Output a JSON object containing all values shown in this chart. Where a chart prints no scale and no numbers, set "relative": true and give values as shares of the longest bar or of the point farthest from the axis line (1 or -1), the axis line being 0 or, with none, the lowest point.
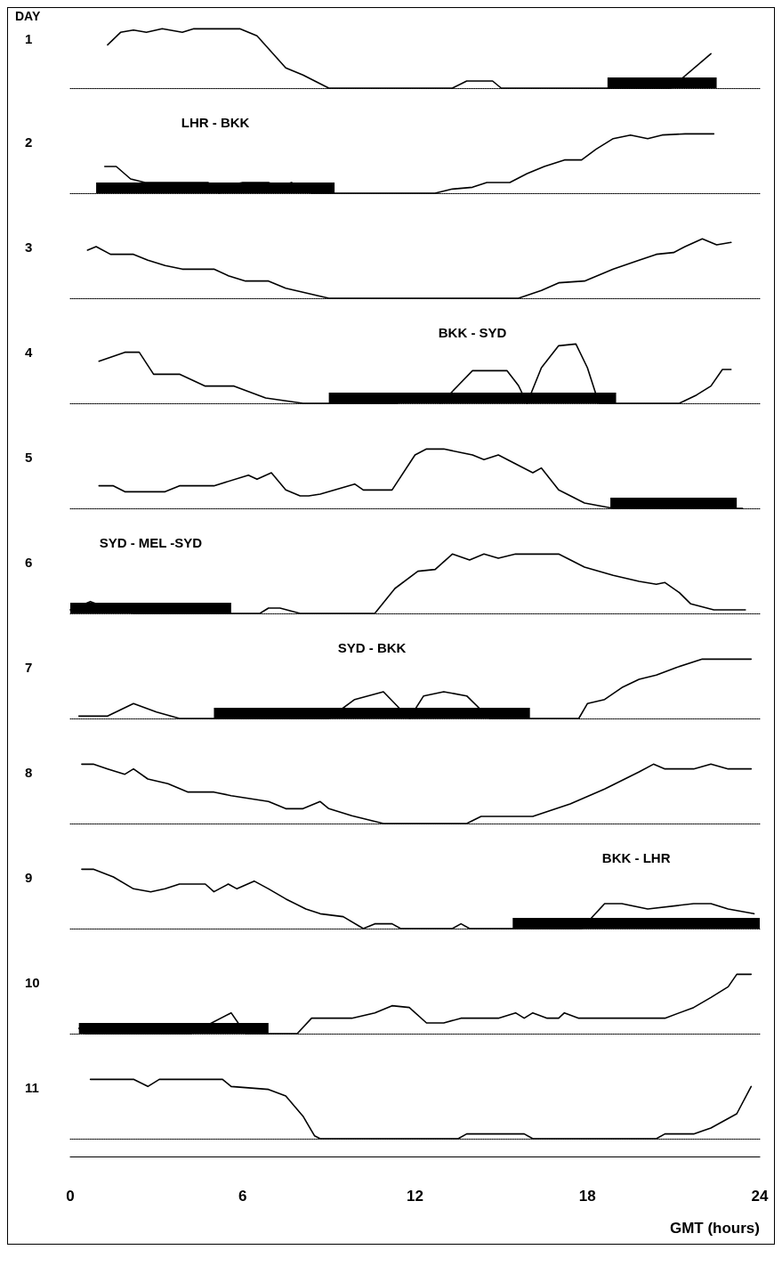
{
  "chart_data": [
    {
      "type": "line",
      "title": "1",
      "annotations": [
        "DAY"
      ],
      "relative": true,
      "xlim": [
        0,
        24
      ],
      "tick_labels": false,
      "x": [
        1.3,
        1.75,
        2.2,
        2.65,
        3.2,
        3.9,
        4.3,
        5.9,
        6.5,
        7.5,
        8.1,
        9.0,
        13.3,
        13.8,
        14.7,
        15.0,
        20.9,
        22.3
      ],
      "series": [
        {
          "color": "#000000",
          "values": [
            0.73,
            0.94,
            0.98,
            0.94,
            1.0,
            0.94,
            1.0,
            1.0,
            0.88,
            0.34,
            0.22,
            0,
            0,
            0.12,
            0.12,
            0,
            0,
            0.58
          ]
        }
      ],
      "bands": [
        {
          "axis": "x",
          "from": 18.7,
          "to": 22.5,
          "color": "#000000"
        }
      ]
    },
    {
      "type": "line",
      "title": "2",
      "relative": true,
      "xlim": [
        0,
        24
      ],
      "tick_labels": false,
      "x": [
        1.2,
        1.6,
        2.1,
        2.6,
        4.8,
        5.2,
        5.7,
        6.0,
        6.9,
        7.3,
        7.7,
        8.1,
        8.4,
        12.7,
        13.3,
        14.0,
        14.5,
        15.3,
        15.9,
        16.5,
        17.2,
        17.8,
        18.3,
        18.9,
        19.5,
        20.1,
        20.6,
        21.4,
        22.4
      ],
      "series": [
        {
          "color": "#000000",
          "values": [
            0.45,
            0.45,
            0.24,
            0.18,
            0.18,
            0,
            0.15,
            0.18,
            0.18,
            0.1,
            0.18,
            0.05,
            0,
            0,
            0.07,
            0.1,
            0.18,
            0.18,
            0.33,
            0.45,
            0.56,
            0.56,
            0.74,
            0.92,
            0.98,
            0.92,
            0.98,
            1.0,
            1.0
          ]
        }
      ],
      "bands": [
        {
          "axis": "x",
          "from": 0.9,
          "to": 9.2,
          "label": "LHR - BKK",
          "color": "#000000"
        }
      ]
    },
    {
      "type": "line",
      "title": "3",
      "relative": true,
      "xlim": [
        0,
        24
      ],
      "tick_labels": false,
      "x": [
        0.6,
        0.9,
        1.4,
        2.2,
        2.7,
        3.3,
        3.9,
        5.0,
        5.5,
        6.1,
        6.9,
        7.5,
        8.1,
        9.0,
        15.6,
        16.4,
        17.0,
        17.9,
        18.9,
        19.8,
        20.4,
        21.0,
        21.4,
        22.0,
        22.5,
        23.0
      ],
      "series": [
        {
          "color": "#000000",
          "values": [
            0.81,
            0.87,
            0.74,
            0.74,
            0.64,
            0.55,
            0.49,
            0.49,
            0.38,
            0.29,
            0.29,
            0.17,
            0.1,
            0,
            0,
            0.13,
            0.26,
            0.29,
            0.49,
            0.64,
            0.74,
            0.77,
            0.87,
            1.0,
            0.9,
            0.94
          ]
        }
      ]
    },
    {
      "type": "line",
      "title": "4",
      "relative": true,
      "xlim": [
        0,
        24
      ],
      "tick_labels": false,
      "x": [
        1.0,
        1.9,
        2.4,
        2.9,
        3.8,
        4.7,
        5.7,
        6.8,
        8.1,
        11.4,
        11.8,
        12.5,
        12.9,
        13.5,
        14.0,
        15.2,
        15.6,
        15.9,
        16.4,
        17.0,
        17.6,
        18.0,
        18.4,
        21.2,
        21.8,
        22.3,
        22.7,
        23.0
      ],
      "series": [
        {
          "color": "#000000",
          "values": [
            0.71,
            0.86,
            0.86,
            0.49,
            0.49,
            0.29,
            0.29,
            0.09,
            0,
            0,
            0.14,
            0.14,
            0,
            0.3,
            0.55,
            0.55,
            0.3,
            0,
            0.6,
            0.97,
            1.0,
            0.6,
            0,
            0,
            0.14,
            0.29,
            0.57,
            0.57
          ]
        }
      ],
      "bands": [
        {
          "axis": "x",
          "from": 9.0,
          "to": 19.0,
          "label": "BKK - SYD",
          "color": "#000000"
        }
      ]
    },
    {
      "type": "line",
      "title": "5",
      "relative": true,
      "xlim": [
        0,
        24
      ],
      "tick_labels": false,
      "x": [
        1.0,
        1.5,
        1.9,
        3.3,
        3.8,
        5.0,
        6.2,
        6.5,
        7.0,
        7.5,
        8.0,
        8.3,
        8.7,
        9.9,
        10.2,
        11.2,
        12.0,
        12.4,
        13.0,
        14.0,
        14.4,
        14.9,
        15.5,
        16.1,
        16.4,
        17.0,
        17.9,
        18.9,
        23.4
      ],
      "series": [
        {
          "color": "#000000",
          "values": [
            0.38,
            0.38,
            0.28,
            0.28,
            0.38,
            0.38,
            0.56,
            0.49,
            0.6,
            0.31,
            0.21,
            0.21,
            0.24,
            0.41,
            0.31,
            0.31,
            0.9,
            1.0,
            1.0,
            0.9,
            0.82,
            0.9,
            0.75,
            0.6,
            0.68,
            0.31,
            0.09,
            0,
            0
          ]
        }
      ],
      "bands": [
        {
          "axis": "x",
          "from": 18.8,
          "to": 23.2,
          "color": "#000000"
        }
      ]
    },
    {
      "type": "line",
      "title": "6",
      "relative": true,
      "xlim": [
        0,
        24
      ],
      "tick_labels": false,
      "x": [
        0,
        0.7,
        1.3,
        2.2,
        6.6,
        6.9,
        7.3,
        8.0,
        10.6,
        11.3,
        12.1,
        12.7,
        13.3,
        13.9,
        14.4,
        14.9,
        15.5,
        17.0,
        17.9,
        18.9,
        19.8,
        20.4,
        20.7,
        21.2,
        21.6,
        22.4,
        23.5
      ],
      "series": [
        {
          "color": "#000000",
          "values": [
            0.06,
            0.2,
            0.09,
            0,
            0,
            0.09,
            0.09,
            0,
            0,
            0.42,
            0.71,
            0.74,
            1.0,
            0.9,
            1.0,
            0.93,
            1.0,
            1.0,
            0.78,
            0.64,
            0.54,
            0.49,
            0.52,
            0.35,
            0.16,
            0.06,
            0.06
          ]
        }
      ],
      "bands": [
        {
          "axis": "x",
          "from": 0.0,
          "to": 5.6,
          "label": "SYD - MEL -SYD",
          "color": "#000000"
        }
      ]
    },
    {
      "type": "line",
      "title": "7",
      "relative": true,
      "xlim": [
        0,
        24
      ],
      "tick_labels": false,
      "x": [
        0.3,
        1.3,
        2.2,
        3.0,
        3.8,
        9.0,
        9.9,
        10.9,
        11.8,
        12.3,
        13.0,
        13.8,
        14.6,
        17.7,
        18.0,
        18.6,
        19.2,
        19.8,
        20.4,
        21.1,
        22.0,
        23.7
      ],
      "series": [
        {
          "color": "#000000",
          "values": [
            0.04,
            0.04,
            0.25,
            0.11,
            0,
            0,
            0.32,
            0.45,
            0,
            0.38,
            0.45,
            0.38,
            0,
            0,
            0.25,
            0.32,
            0.52,
            0.66,
            0.73,
            0.86,
            1.0,
            1.0
          ]
        }
      ],
      "bands": [
        {
          "axis": "x",
          "from": 5.0,
          "to": 16.0,
          "label": "SYD - BKK",
          "color": "#000000"
        }
      ]
    },
    {
      "type": "line",
      "title": "8",
      "relative": true,
      "xlim": [
        0,
        24
      ],
      "tick_labels": false,
      "x": [
        0.4,
        0.8,
        1.3,
        1.9,
        2.2,
        2.7,
        3.4,
        4.1,
        5.0,
        5.6,
        6.9,
        7.5,
        8.1,
        8.7,
        9.0,
        9.8,
        10.9,
        13.8,
        14.3,
        16.1,
        17.4,
        18.6,
        19.8,
        20.3,
        20.7,
        21.7,
        22.3,
        22.9,
        23.7
      ],
      "series": [
        {
          "color": "#000000",
          "values": [
            1.0,
            1.0,
            0.92,
            0.83,
            0.92,
            0.75,
            0.67,
            0.53,
            0.53,
            0.47,
            0.37,
            0.25,
            0.25,
            0.37,
            0.25,
            0.13,
            0,
            0,
            0.12,
            0.12,
            0.33,
            0.58,
            0.87,
            1.0,
            0.92,
            0.92,
            1.0,
            0.92,
            0.92
          ]
        }
      ]
    },
    {
      "type": "line",
      "title": "9",
      "relative": true,
      "xlim": [
        0,
        24
      ],
      "tick_labels": false,
      "x": [
        0.4,
        0.8,
        1.5,
        2.2,
        2.8,
        3.3,
        3.8,
        4.7,
        5.0,
        5.5,
        5.8,
        6.4,
        6.9,
        7.5,
        8.2,
        8.7,
        9.5,
        10.2,
        10.6,
        11.2,
        11.5,
        13.3,
        13.6,
        13.9,
        17.8,
        18.6,
        19.2,
        20.1,
        21.7,
        22.3,
        22.9,
        23.8
      ],
      "series": [
        {
          "color": "#000000",
          "values": [
            1.0,
            1.0,
            0.87,
            0.67,
            0.62,
            0.67,
            0.75,
            0.75,
            0.62,
            0.75,
            0.67,
            0.8,
            0.67,
            0.5,
            0.33,
            0.25,
            0.2,
            0,
            0.08,
            0.08,
            0,
            0,
            0.08,
            0,
            0,
            0.42,
            0.42,
            0.33,
            0.42,
            0.42,
            0.33,
            0.25
          ]
        }
      ],
      "bands": [
        {
          "axis": "x",
          "from": 15.4,
          "to": 24,
          "label": "BKK - LHR",
          "color": "#000000"
        }
      ]
    },
    {
      "type": "line",
      "title": "10",
      "relative": true,
      "xlim": [
        0,
        24
      ],
      "tick_labels": false,
      "x": [
        0.3,
        0.5,
        4.2,
        5.6,
        6.1,
        7.9,
        8.4,
        9.8,
        10.6,
        11.2,
        11.8,
        12.4,
        13.0,
        13.6,
        14.9,
        15.5,
        15.8,
        16.1,
        16.6,
        17.0,
        17.2,
        17.7,
        20.7,
        21.7,
        22.3,
        22.9,
        23.2,
        23.7
      ],
      "series": [
        {
          "color": "#000000",
          "values": [
            0.09,
            0,
            0,
            0.35,
            0,
            0,
            0.26,
            0.26,
            0.35,
            0.47,
            0.44,
            0.18,
            0.18,
            0.26,
            0.26,
            0.35,
            0.26,
            0.35,
            0.26,
            0.26,
            0.35,
            0.26,
            0.26,
            0.44,
            0.61,
            0.79,
            1.0,
            1.0
          ]
        }
      ],
      "bands": [
        {
          "axis": "x",
          "from": 0.3,
          "to": 6.9,
          "color": "#000000"
        }
      ]
    },
    {
      "type": "line",
      "title": "11",
      "relative": true,
      "xlim": [
        0,
        24
      ],
      "xticks": [
        0,
        6,
        12,
        18,
        24
      ],
      "tick_labels": "x",
      "xlabel": "GMT (hours)",
      "x": [
        0.7,
        2.2,
        2.7,
        3.1,
        5.3,
        5.6,
        6.9,
        7.5,
        8.1,
        8.5,
        8.7,
        13.5,
        13.8,
        15.8,
        16.1,
        20.4,
        20.7,
        21.7,
        22.3,
        23.2,
        23.7
      ],
      "series": [
        {
          "color": "#000000",
          "values": [
            1.0,
            1.0,
            0.88,
            1.0,
            1.0,
            0.88,
            0.83,
            0.72,
            0.38,
            0.05,
            0,
            0,
            0.08,
            0.08,
            0,
            0,
            0.08,
            0.08,
            0.18,
            0.42,
            0.88
          ]
        }
      ]
    }
  ]
}
